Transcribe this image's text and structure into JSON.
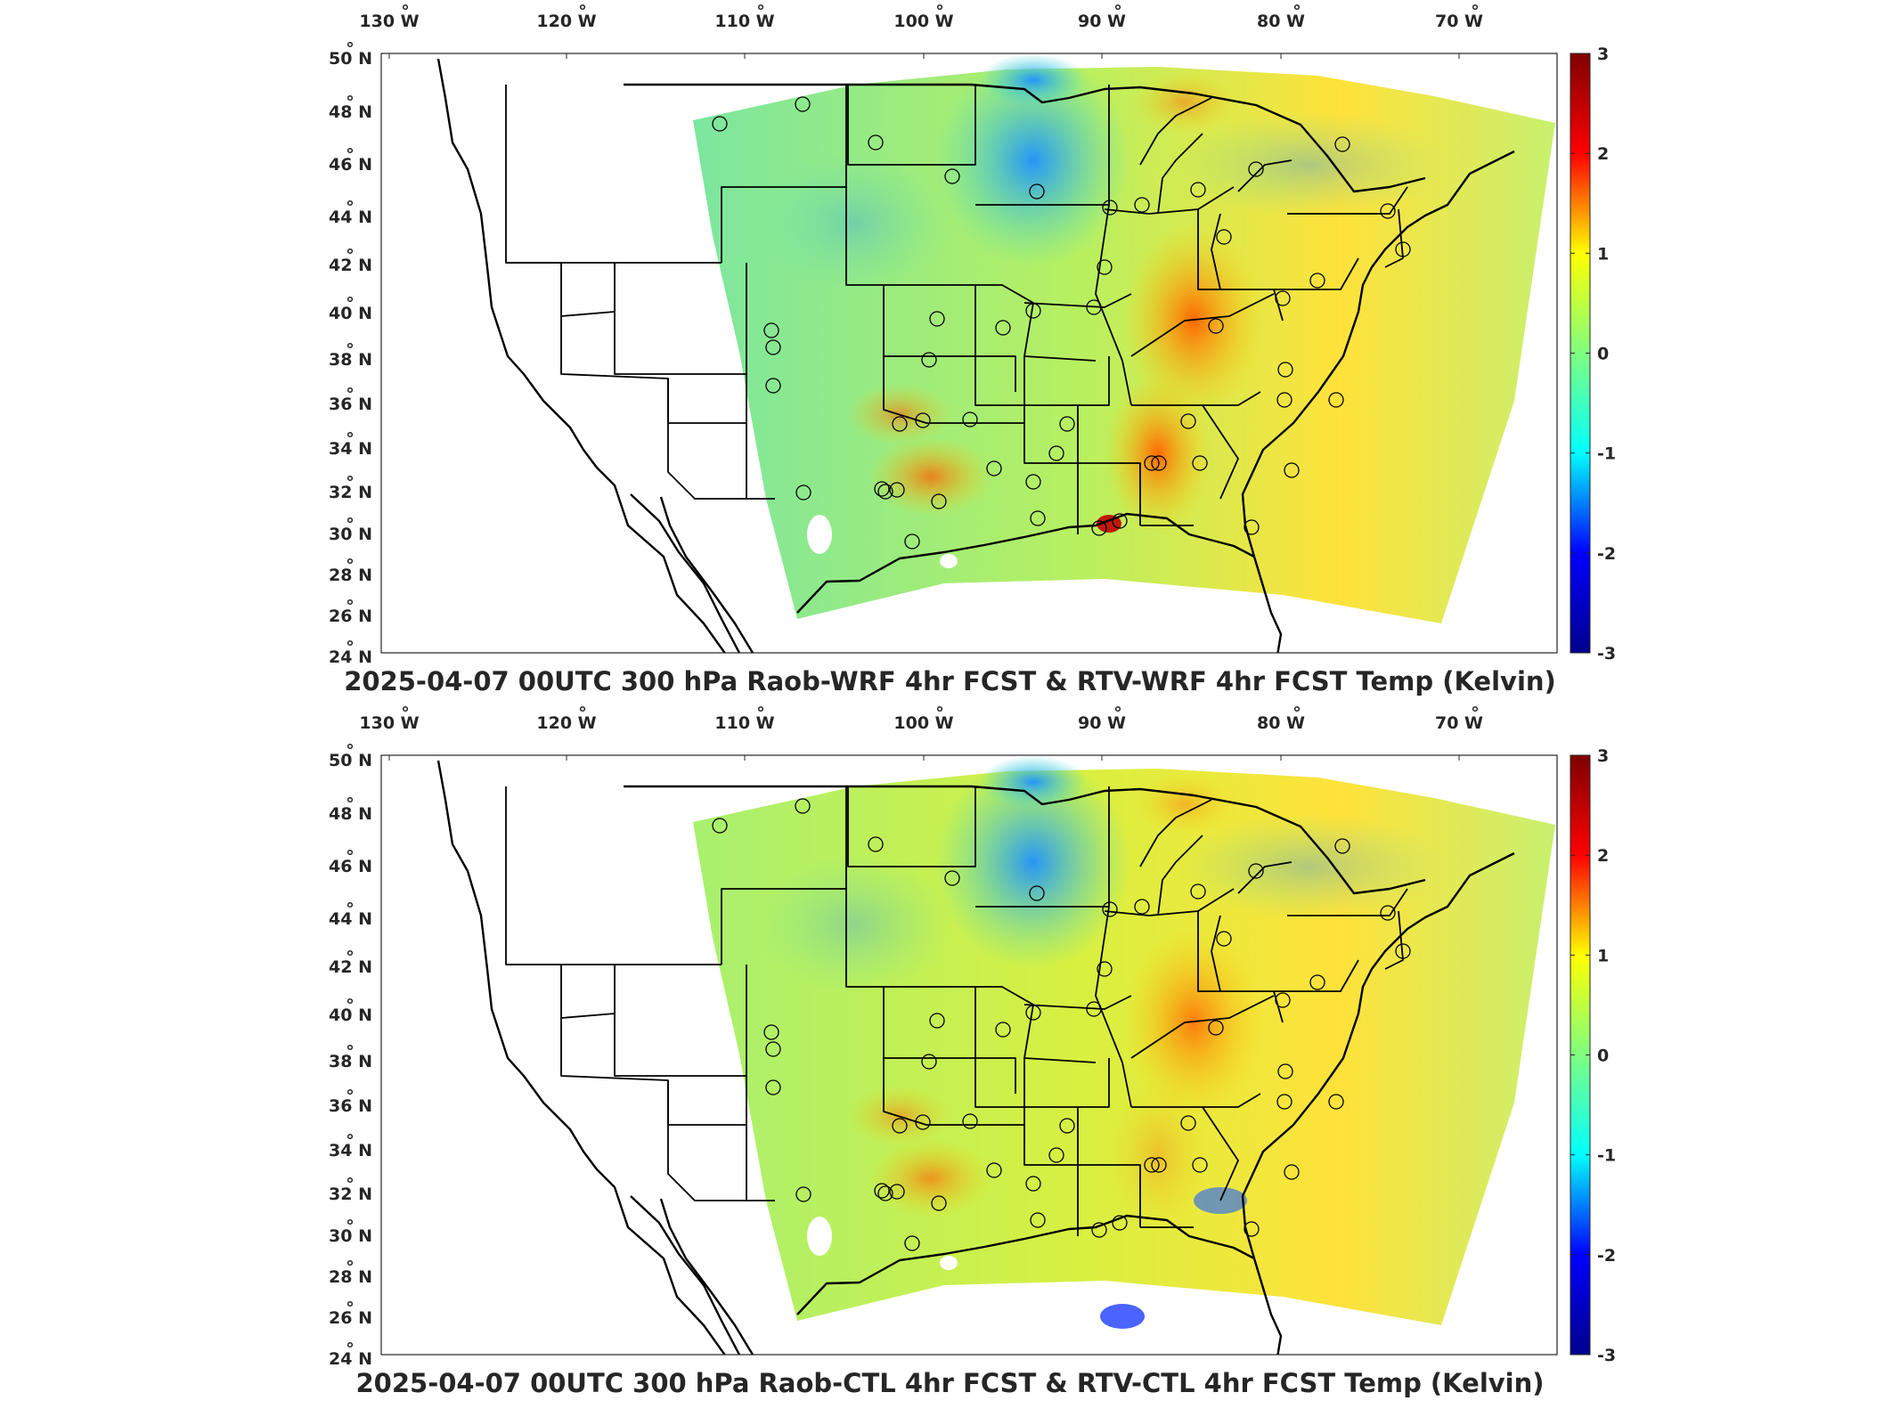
{
  "panels": [
    {
      "title": "2025-04-07 00UTC 300 hPa Raob-WRF 4hr FCST & RTV-WRF 4hr FCST Temp (Kelvin)",
      "colorbar_labels": [
        "3",
        "2",
        "1",
        "0",
        "-1",
        "-2",
        "-3"
      ]
    },
    {
      "title": "2025-04-07 00UTC 300 hPa Raob-CTL 4hr FCST & RTV-CTL 4hr FCST Temp (Kelvin)",
      "colorbar_labels": [
        "3",
        "2",
        "1",
        "0",
        "-1",
        "-2",
        "-3"
      ]
    }
  ],
  "axes": {
    "lon_ticks": [
      {
        "deg": "130",
        "hem": "W"
      },
      {
        "deg": "120",
        "hem": "W"
      },
      {
        "deg": "110",
        "hem": "W"
      },
      {
        "deg": "100",
        "hem": "W"
      },
      {
        "deg": "90",
        "hem": "W"
      },
      {
        "deg": "80",
        "hem": "W"
      },
      {
        "deg": "70",
        "hem": "W"
      }
    ],
    "lat_ticks": [
      {
        "deg": "50",
        "hem": "N"
      },
      {
        "deg": "48",
        "hem": "N"
      },
      {
        "deg": "46",
        "hem": "N"
      },
      {
        "deg": "44",
        "hem": "N"
      },
      {
        "deg": "42",
        "hem": "N"
      },
      {
        "deg": "40",
        "hem": "N"
      },
      {
        "deg": "38",
        "hem": "N"
      },
      {
        "deg": "36",
        "hem": "N"
      },
      {
        "deg": "34",
        "hem": "N"
      },
      {
        "deg": "32",
        "hem": "N"
      },
      {
        "deg": "30",
        "hem": "N"
      },
      {
        "deg": "28",
        "hem": "N"
      },
      {
        "deg": "26",
        "hem": "N"
      },
      {
        "deg": "24",
        "hem": "N"
      }
    ]
  },
  "colormap": {
    "name": "jet",
    "range": [
      -3,
      3
    ],
    "stops": [
      "#00008f",
      "#0000ff",
      "#00ffff",
      "#7fff7f",
      "#ffff00",
      "#ff0000",
      "#7f0000"
    ]
  }
}
